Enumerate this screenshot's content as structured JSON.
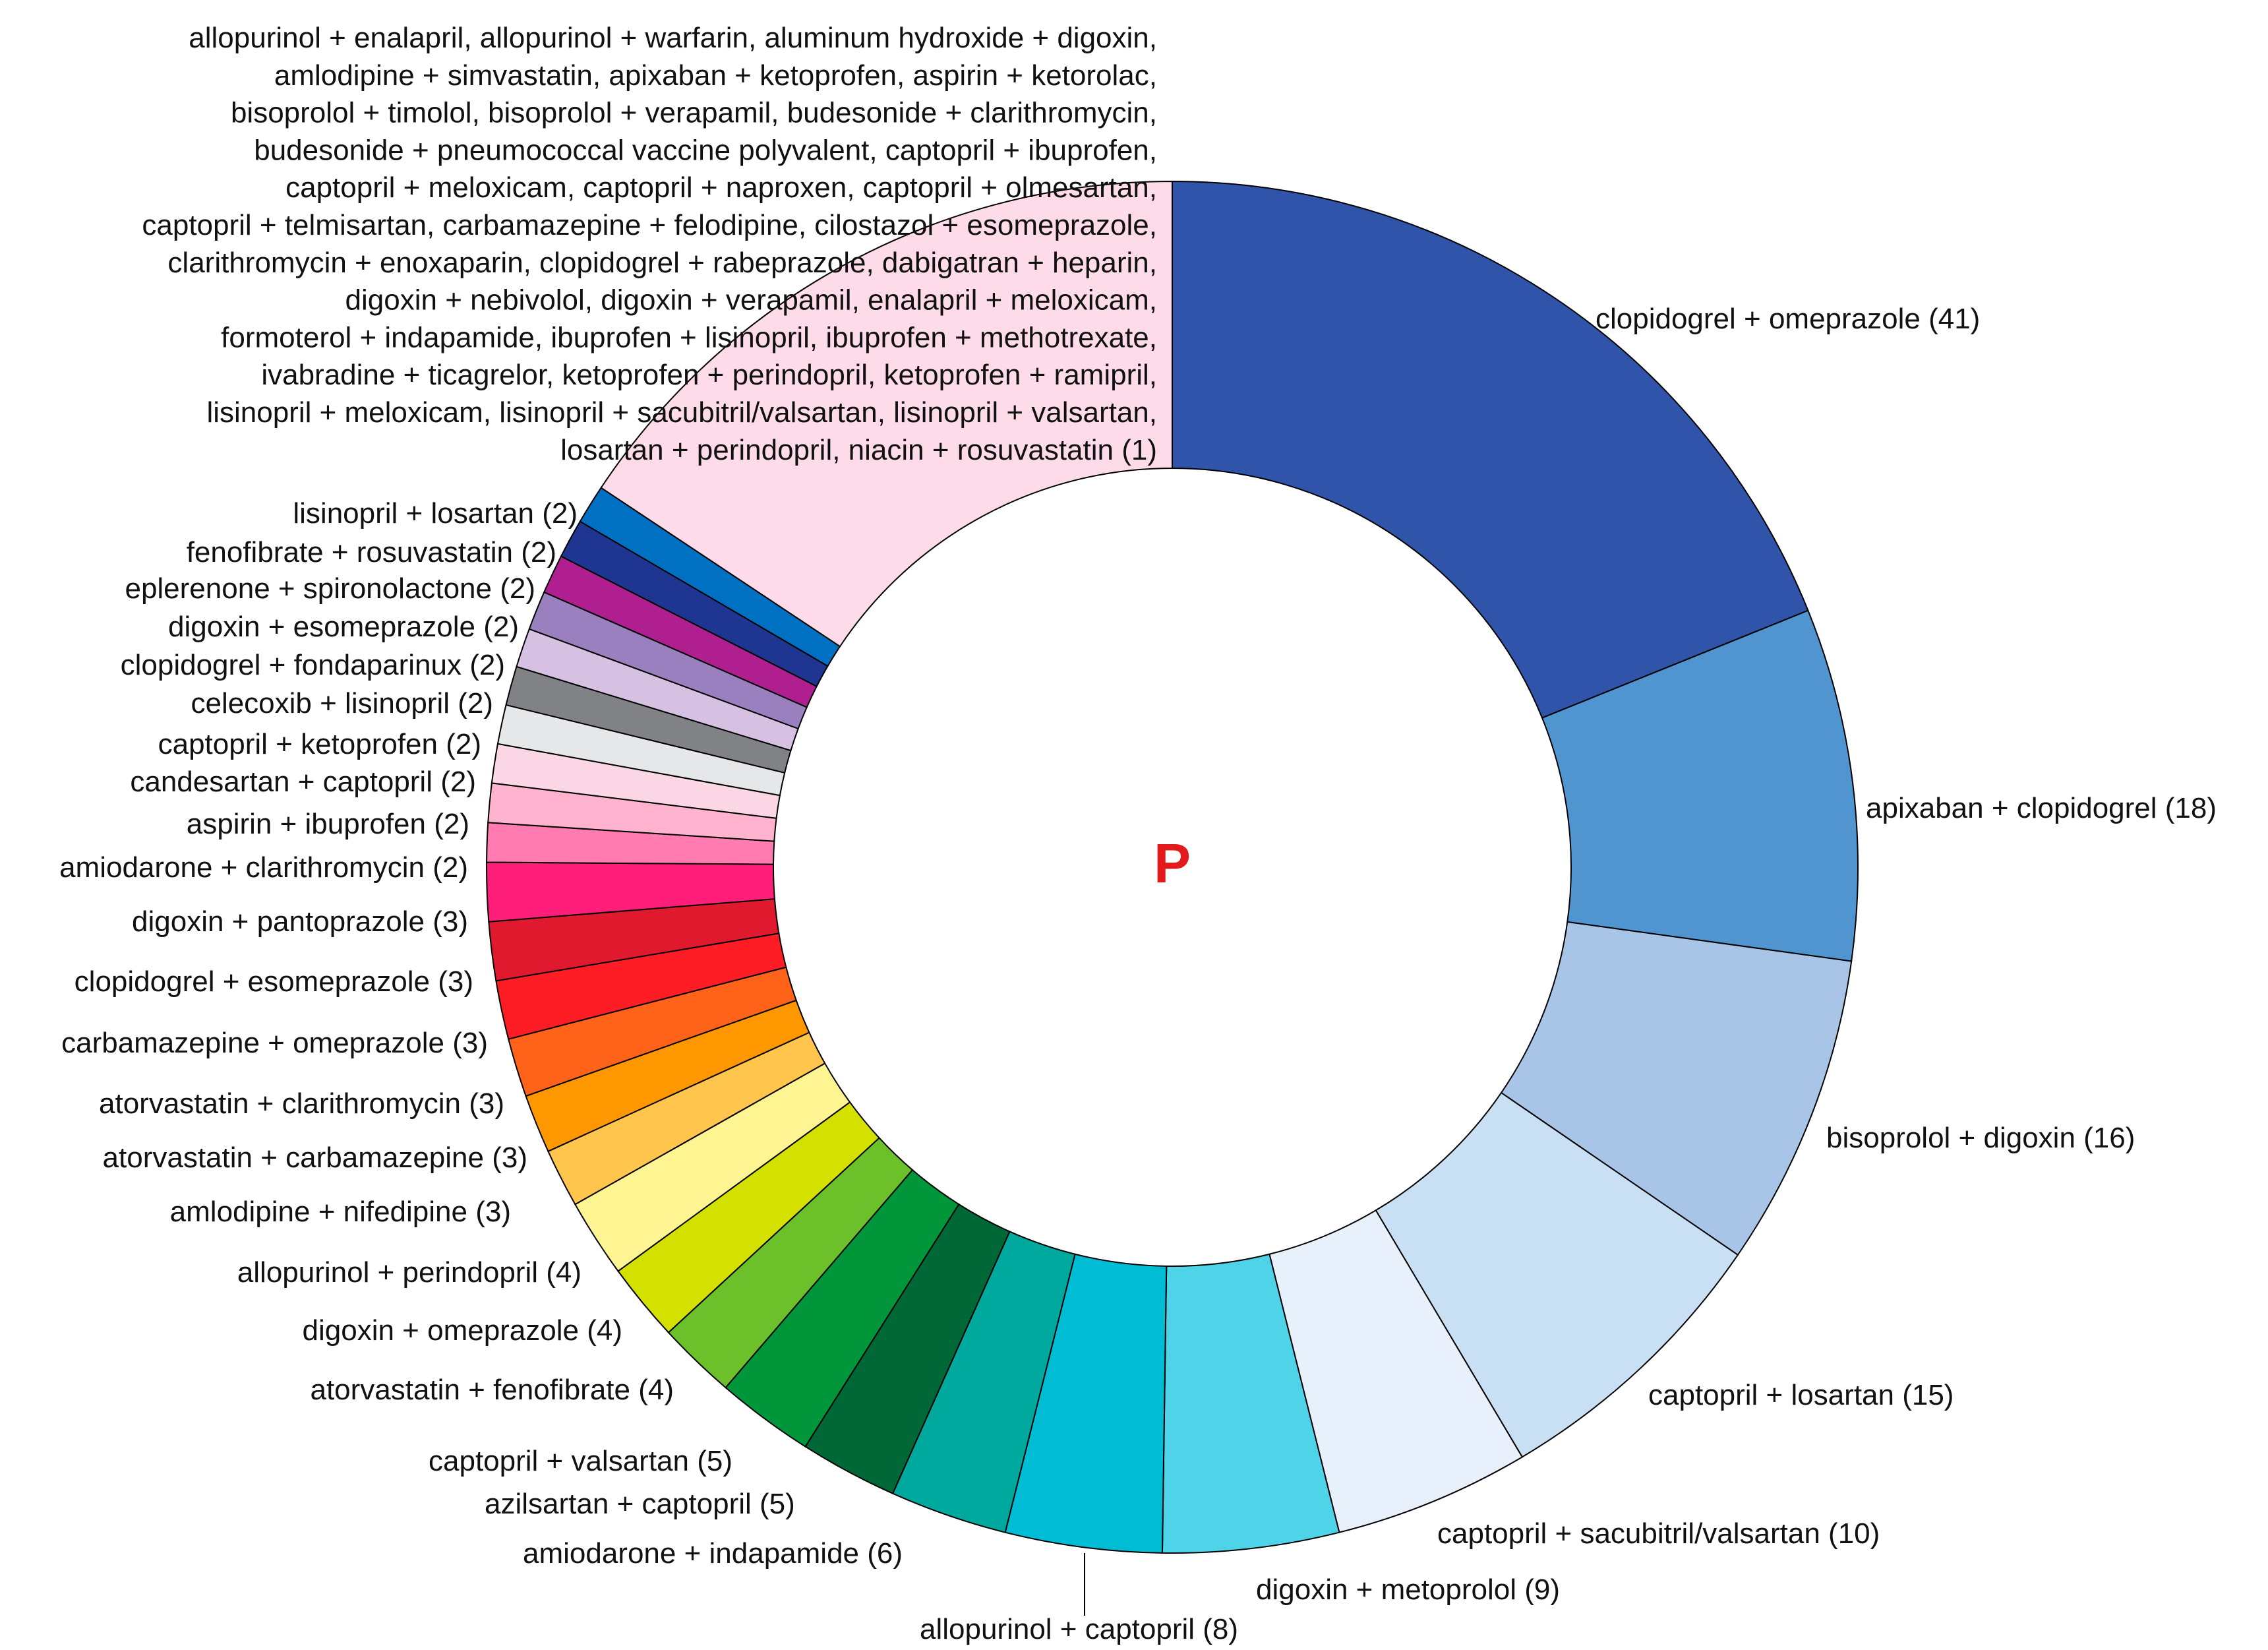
{
  "chart_data": {
    "type": "pie",
    "style": "donut",
    "center_label": "P",
    "center_label_color": "#e31a1c",
    "slices": [
      {
        "label": "clopidogrel + omeprazole (41)",
        "value": 41,
        "color": "#2f54aa"
      },
      {
        "label": "apixaban + clopidogrel (18)",
        "value": 18,
        "color": "#5195d0"
      },
      {
        "label": "bisoprolol + digoxin (16)",
        "value": 16,
        "color": "#a8c4e7"
      },
      {
        "label": "captopril + losartan (15)",
        "value": 15,
        "color": "#c9e0f4"
      },
      {
        "label": "captopril + sacubitril/valsartan (10)",
        "value": 10,
        "color": "#e7f0fb"
      },
      {
        "label": "digoxin + metoprolol (9)",
        "value": 9,
        "color": "#4fd3e8"
      },
      {
        "label": "allopurinol + captopril (8)",
        "value": 8,
        "color": "#00bcd4"
      },
      {
        "label": "amiodarone + indapamide (6)",
        "value": 6,
        "color": "#00a99d"
      },
      {
        "label": "azilsartan + captopril (5)",
        "value": 5,
        "color": "#006837"
      },
      {
        "label": "captopril + valsartan (5)",
        "value": 5,
        "color": "#009639"
      },
      {
        "label": "atorvastatin + fenofibrate (4)",
        "value": 4,
        "color": "#6cc12a"
      },
      {
        "label": "digoxin + omeprazole (4)",
        "value": 4,
        "color": "#d4e000"
      },
      {
        "label": "allopurinol + perindopril (4)",
        "value": 4,
        "color": "#fef491"
      },
      {
        "label": "amlodipine + nifedipine (3)",
        "value": 3,
        "color": "#ffc54d"
      },
      {
        "label": "atorvastatin + carbamazepine (3)",
        "value": 3,
        "color": "#ff9800"
      },
      {
        "label": "atorvastatin + clarithromycin (3)",
        "value": 3,
        "color": "#ff6319"
      },
      {
        "label": "carbamazepine + omeprazole (3)",
        "value": 3,
        "color": "#ff1d25"
      },
      {
        "label": "clopidogrel + esomeprazole (3)",
        "value": 3,
        "color": "#e0192e"
      },
      {
        "label": "digoxin + pantoprazole (3)",
        "value": 3,
        "color": "#ff1f7a"
      },
      {
        "label": "amiodarone + clarithromycin (2)",
        "value": 2,
        "color": "#ff7bb0"
      },
      {
        "label": "aspirin + ibuprofen (2)",
        "value": 2,
        "color": "#ffb3cf"
      },
      {
        "label": "candesartan + captopril (2)",
        "value": 2,
        "color": "#fbd6e4"
      },
      {
        "label": "captopril + ketoprofen (2)",
        "value": 2,
        "color": "#e6e7e8"
      },
      {
        "label": "celecoxib + lisinopril (2)",
        "value": 2,
        "color": "#808285"
      },
      {
        "label": "clopidogrel + fondaparinux (2)",
        "value": 2,
        "color": "#d7c1e2"
      },
      {
        "label": "digoxin + esomeprazole (2)",
        "value": 2,
        "color": "#9b80c0"
      },
      {
        "label": "eplerenone + spironolactone (2)",
        "value": 2,
        "color": "#b01f8f"
      },
      {
        "label": "fenofibrate + rosuvastatin (2)",
        "value": 2,
        "color": "#1e3591"
      },
      {
        "label": "lisinopril + losartan (2)",
        "value": 2,
        "color": "#0071c2"
      },
      {
        "label": "allopurinol + enalapril, allopurinol + warfarin, aluminum hydroxide + digoxin, amlodipine + simvastatin, apixaban + ketoprofen, aspirin + ketorolac, bisoprolol + timolol, bisoprolol + verapamil, budesonide + clarithromycin, budesonide + pneumococcal vaccine polyvalent, captopril + ibuprofen, captopril + meloxicam, captopril + naproxen, captopril + olmesartan, captopril + telmisartan, carbamazepine + felodipine, cilostazol + esomeprazole, clarithromycin + enoxaparin, clopidogrel + rabeprazole, dabigatran + heparin, digoxin + nebivolol, digoxin + verapamil, enalapril + meloxicam, formoterol + indapamide, ibuprofen + lisinopril, ibuprofen + methotrexate, ivabradine + ticagrelor, ketoprofen + perindopril, ketoprofen + ramipril, lisinopril + meloxicam, lisinopril + sacubitril/valsartan, lisinopril + valsartan, losartan + perindopril, niacin + rosuvastatin (1)",
        "value": 34,
        "color": "#fddbe8"
      }
    ],
    "multi_label_lines": [
      "allopurinol + enalapril, allopurinol + warfarin, aluminum hydroxide + digoxin,",
      "amlodipine + simvastatin, apixaban + ketoprofen, aspirin + ketorolac,",
      "bisoprolol + timolol, bisoprolol + verapamil, budesonide + clarithromycin,",
      "budesonide + pneumococcal vaccine polyvalent, captopril + ibuprofen,",
      "captopril + meloxicam, captopril + naproxen, captopril + olmesartan,",
      "captopril + telmisartan, carbamazepine + felodipine, cilostazol + esomeprazole,",
      "clarithromycin + enoxaparin, clopidogrel + rabeprazole, dabigatran + heparin,",
      "digoxin + nebivolol, digoxin + verapamil, enalapril + meloxicam,",
      "formoterol + indapamide, ibuprofen + lisinopril, ibuprofen + methotrexate,",
      "ivabradine + ticagrelor, ketoprofen + perindopril, ketoprofen + ramipril,",
      "lisinopril + meloxicam, lisinopril + sacubitril/valsartan, lisinopril + valsartan,",
      "losartan + perindopril, niacin + rosuvastatin (1)"
    ]
  }
}
